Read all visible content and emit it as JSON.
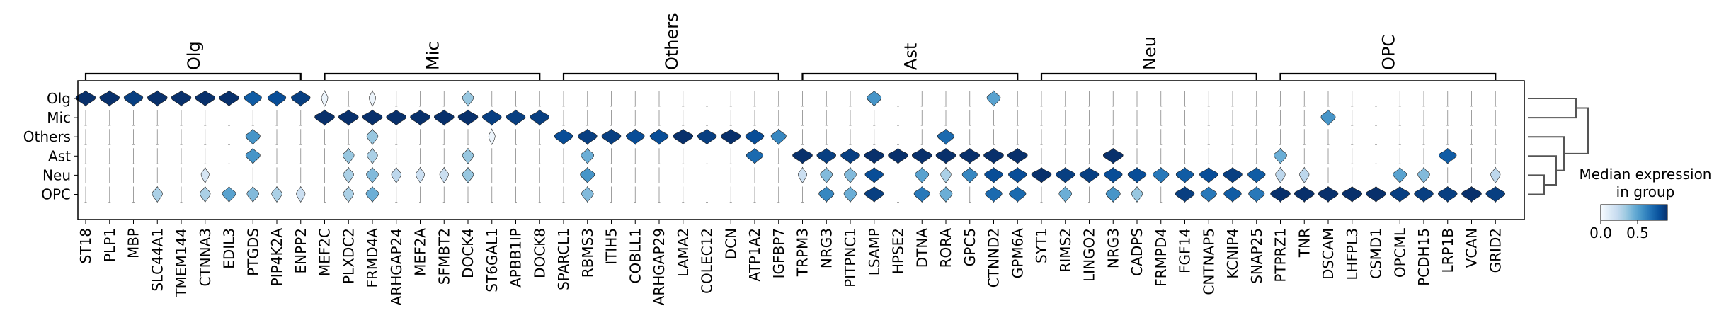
{
  "chart_data": {
    "type": "stacked_violin",
    "groups": [
      "Olg",
      "Mic",
      "Others",
      "Ast",
      "Neu",
      "OPC"
    ],
    "gene_groups": [
      {
        "label": "Olg",
        "genes": [
          "ST18",
          "PLP1",
          "MBP",
          "SLC44A1",
          "TMEM144",
          "CTNNA3",
          "EDIL3",
          "PTGDS",
          "PIP4K2A",
          "ENPP2"
        ]
      },
      {
        "label": "Mic",
        "genes": [
          "MEF2C",
          "PLXDC2",
          "FRMD4A",
          "ARHGAP24",
          "MEF2A",
          "SFMBT2",
          "DOCK4",
          "ST6GAL1",
          "APBB1IP",
          "DOCK8"
        ]
      },
      {
        "label": "Others",
        "genes": [
          "SPARCL1",
          "RBMS3",
          "ITIH5",
          "COBLL1",
          "ARHGAP29",
          "LAMA2",
          "COLEC12",
          "DCN",
          "ATP1A2",
          "IGFBP7"
        ]
      },
      {
        "label": "Ast",
        "genes": [
          "TRPM3",
          "NRG3",
          "PITPNC1",
          "LSAMP",
          "HPSE2",
          "DTNA",
          "RORA",
          "GPC5",
          "CTNND2",
          "GPM6A"
        ]
      },
      {
        "label": "Neu",
        "genes": [
          "SYT1",
          "RIMS2",
          "LINGO2",
          "NRG3",
          "CADPS",
          "FRMPD4",
          "FGF14",
          "CNTNAP5",
          "KCNIP4",
          "SNAP25"
        ]
      },
      {
        "label": "OPC",
        "genes": [
          "PTPRZ1",
          "TNR",
          "DSCAM",
          "LHFPL3",
          "CSMD1",
          "OPCML",
          "PCDH15",
          "LRP1B",
          "VCAN",
          "GRID2"
        ]
      }
    ],
    "median_expression": [
      [
        0.9,
        0.9,
        0.85,
        0.9,
        0.9,
        0.9,
        0.9,
        0.75,
        0.8,
        0.85,
        0.05,
        0.0,
        0.05,
        0.0,
        0.0,
        0.0,
        0.35,
        0.0,
        0.0,
        0.0,
        0.0,
        0.0,
        0.0,
        0.0,
        0.0,
        0.0,
        0.0,
        0.0,
        0.0,
        0.0,
        0.0,
        0.0,
        0.0,
        0.55,
        0.0,
        0.0,
        0.0,
        0.0,
        0.5,
        0.0,
        0.0,
        0.0,
        0.0,
        0.0,
        0.0,
        0.0,
        0.0,
        0.0,
        0.0,
        0.0,
        0.0,
        0.0,
        0.0,
        0.0,
        0.0,
        0.0,
        0.0,
        0.0,
        0.0,
        0.0
      ],
      [
        0.0,
        0.0,
        0.0,
        0.0,
        0.0,
        0.0,
        0.0,
        0.0,
        0.0,
        0.0,
        0.95,
        0.95,
        0.95,
        0.9,
        0.95,
        0.9,
        0.95,
        0.85,
        0.85,
        0.85,
        0.0,
        0.0,
        0.0,
        0.0,
        0.0,
        0.0,
        0.0,
        0.0,
        0.0,
        0.0,
        0.0,
        0.0,
        0.0,
        0.0,
        0.0,
        0.0,
        0.0,
        0.0,
        0.0,
        0.0,
        0.0,
        0.0,
        0.0,
        0.0,
        0.0,
        0.0,
        0.0,
        0.0,
        0.0,
        0.0,
        0.0,
        0.0,
        0.55,
        0.0,
        0.0,
        0.0,
        0.0,
        0.0,
        0.0,
        0.0
      ],
      [
        0.0,
        0.0,
        0.0,
        0.0,
        0.0,
        0.0,
        0.0,
        0.55,
        0.0,
        0.0,
        0.0,
        0.0,
        0.35,
        0.0,
        0.0,
        0.0,
        0.0,
        0.05,
        0.0,
        0.0,
        0.8,
        0.85,
        0.85,
        0.8,
        0.8,
        0.9,
        0.85,
        0.9,
        0.8,
        0.6,
        0.0,
        0.0,
        0.0,
        0.0,
        0.0,
        0.0,
        0.7,
        0.0,
        0.0,
        0.0,
        0.0,
        0.0,
        0.0,
        0.0,
        0.0,
        0.0,
        0.0,
        0.0,
        0.0,
        0.0,
        0.0,
        0.0,
        0.0,
        0.0,
        0.0,
        0.0,
        0.0,
        0.0,
        0.0,
        0.0
      ],
      [
        0.0,
        0.0,
        0.0,
        0.0,
        0.0,
        0.0,
        0.0,
        0.55,
        0.0,
        0.0,
        0.0,
        0.35,
        0.3,
        0.0,
        0.0,
        0.0,
        0.35,
        0.0,
        0.0,
        0.0,
        0.0,
        0.45,
        0.0,
        0.0,
        0.0,
        0.0,
        0.0,
        0.0,
        0.7,
        0.0,
        0.9,
        0.85,
        0.85,
        0.9,
        0.9,
        0.9,
        0.9,
        0.9,
        0.9,
        0.9,
        0.0,
        0.0,
        0.0,
        0.9,
        0.0,
        0.0,
        0.0,
        0.0,
        0.0,
        0.0,
        0.45,
        0.0,
        0.0,
        0.0,
        0.0,
        0.0,
        0.0,
        0.75,
        0.0,
        0.0
      ],
      [
        0.0,
        0.0,
        0.0,
        0.0,
        0.0,
        0.15,
        0.0,
        0.0,
        0.0,
        0.0,
        0.0,
        0.3,
        0.4,
        0.25,
        0.2,
        0.2,
        0.35,
        0.0,
        0.0,
        0.0,
        0.0,
        0.55,
        0.0,
        0.0,
        0.0,
        0.0,
        0.0,
        0.0,
        0.0,
        0.0,
        0.2,
        0.4,
        0.4,
        0.8,
        0.0,
        0.5,
        0.3,
        0.6,
        0.8,
        0.8,
        0.9,
        0.85,
        0.85,
        0.8,
        0.8,
        0.65,
        0.75,
        0.8,
        0.85,
        0.75,
        0.25,
        0.25,
        0.0,
        0.0,
        0.0,
        0.5,
        0.4,
        0.0,
        0.0,
        0.25
      ],
      [
        0.0,
        0.0,
        0.0,
        0.3,
        0.0,
        0.3,
        0.5,
        0.4,
        0.3,
        0.2,
        0.0,
        0.3,
        0.45,
        0.0,
        0.0,
        0.0,
        0.0,
        0.0,
        0.0,
        0.0,
        0.0,
        0.4,
        0.0,
        0.0,
        0.0,
        0.0,
        0.0,
        0.0,
        0.0,
        0.0,
        0.0,
        0.6,
        0.45,
        0.85,
        0.0,
        0.65,
        0.45,
        0.0,
        0.7,
        0.7,
        0.0,
        0.45,
        0.0,
        0.55,
        0.35,
        0.0,
        0.85,
        0.65,
        0.75,
        0.65,
        0.9,
        0.9,
        0.9,
        0.9,
        0.9,
        0.85,
        0.85,
        0.85,
        0.9,
        0.85
      ]
    ],
    "colorbar": {
      "title_line1": "Median expression",
      "title_line2": "in group",
      "ticks": [
        "0.0",
        "0.5"
      ],
      "min": 0,
      "max": 0.9,
      "colormap": "Blues"
    },
    "dendrogram": true,
    "colors": {
      "violin_edge": "#000000",
      "empty_line": "#888888"
    }
  }
}
